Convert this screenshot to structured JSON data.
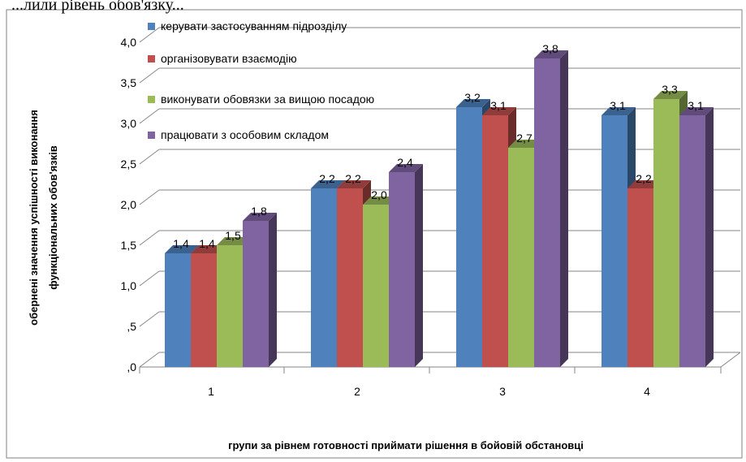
{
  "top_fragment": "...лили рівень обов'язку...",
  "chart_data": {
    "type": "bar",
    "title": "",
    "xlabel": "групи за рівнем готовності приймати рішення в бойовій обстановці",
    "ylabel_lines": [
      "обернені значення успішності виконання",
      "функціональних обов'язків"
    ],
    "categories": [
      "1",
      "2",
      "3",
      "4"
    ],
    "ylim": [
      0,
      4.0
    ],
    "yticks": [
      ",0",
      ",5",
      "1,0",
      "1,5",
      "2,0",
      "2,5",
      "3,0",
      "3,5",
      "4,0"
    ],
    "ytick_values": [
      0,
      0.5,
      1.0,
      1.5,
      2.0,
      2.5,
      3.0,
      3.5,
      4.0
    ],
    "grid": true,
    "legend_position": "top-left",
    "series": [
      {
        "name": "керувати застосуванням підрозділу",
        "color": "#4F81BD",
        "values": [
          1.4,
          2.2,
          3.2,
          3.1
        ],
        "labels": [
          "1,4",
          "2,2",
          "3,2",
          "3,1"
        ]
      },
      {
        "name": "організовувати взаємодію",
        "color": "#C0504D",
        "values": [
          1.4,
          2.2,
          3.1,
          2.2
        ],
        "labels": [
          "1,4",
          "2,2",
          "3,1",
          "2,2"
        ]
      },
      {
        "name": "виконувати обовязки за вищою посадою",
        "color": "#9BBB59",
        "values": [
          1.5,
          2.0,
          2.7,
          3.3
        ],
        "labels": [
          "1,5",
          "2,0",
          "2,7",
          "3,3"
        ]
      },
      {
        "name": "працювати з особовим складом",
        "color": "#8064A2",
        "values": [
          1.8,
          2.4,
          3.8,
          3.1
        ],
        "labels": [
          "1,8",
          "2,4",
          "3,8",
          "3,1"
        ]
      }
    ]
  }
}
